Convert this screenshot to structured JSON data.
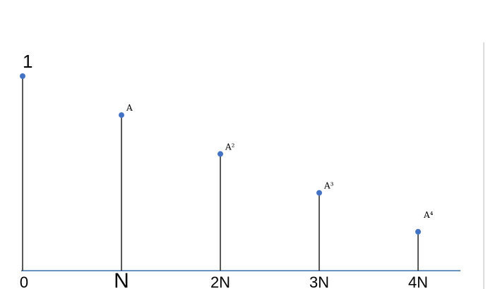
{
  "chart_data": {
    "type": "stem",
    "x": [
      0,
      1,
      2,
      3,
      4
    ],
    "values": [
      1,
      0.8,
      0.6,
      0.4,
      0.2
    ],
    "tick_labels": [
      "0",
      "N",
      "2N",
      "3N",
      "4N"
    ],
    "point_labels": [
      "1",
      "A",
      "A²",
      "A³",
      "A⁴"
    ],
    "xlim": [
      0,
      4.4
    ],
    "ylim": [
      0,
      1
    ],
    "colors": {
      "marker": "#4472c4",
      "stem": "#000000",
      "axis": "#3a6ea8"
    },
    "grid": false
  }
}
